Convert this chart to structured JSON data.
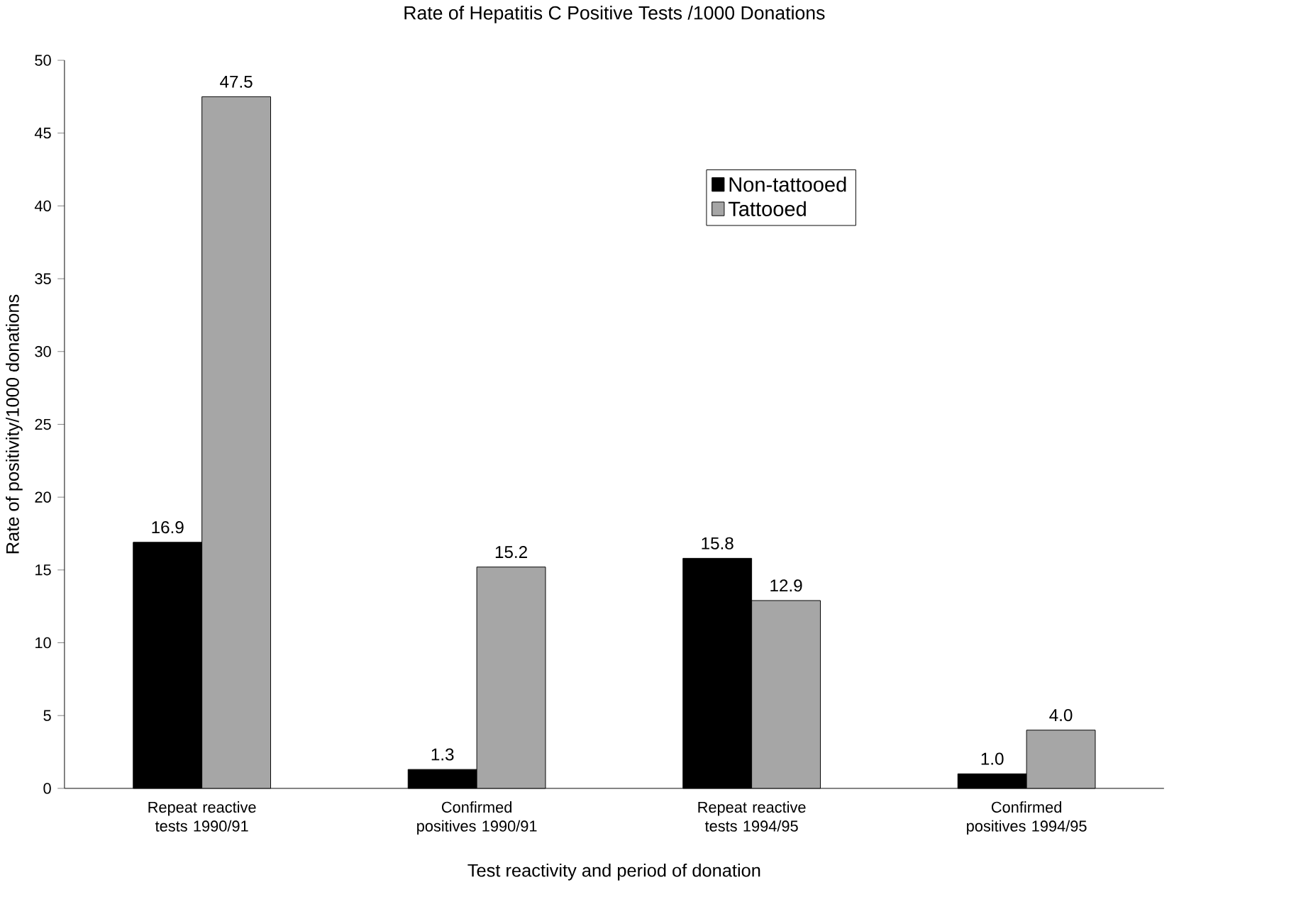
{
  "chart_data": {
    "type": "bar",
    "title": "Rate of Hepatitis C Positive Tests /1000 Donations",
    "xlabel": "Test reactivity and period of donation",
    "ylabel": "Rate of positivity/1000 donations",
    "categories": [
      "Repeat reactive tests 1990/91",
      "Confirmed positives 1990/91",
      "Repeat reactive tests 1994/95",
      "Confirmed positives 1994/95"
    ],
    "series": [
      {
        "name": "Non-tattooed",
        "color": "#000000",
        "values": [
          16.9,
          1.3,
          15.8,
          1.0
        ],
        "value_labels": [
          "16.9",
          "1.3",
          "15.8",
          "1.0"
        ]
      },
      {
        "name": "Tattooed",
        "color": "#a6a6a6",
        "values": [
          47.5,
          15.2,
          12.9,
          4.0
        ],
        "value_labels": [
          "47.5",
          "15.2",
          "12.9",
          "4.0"
        ]
      }
    ],
    "ylim": [
      0,
      50
    ],
    "yticks": [
      0,
      5,
      10,
      15,
      20,
      25,
      30,
      35,
      40,
      45,
      50
    ],
    "grid": false,
    "legend": "top right"
  }
}
